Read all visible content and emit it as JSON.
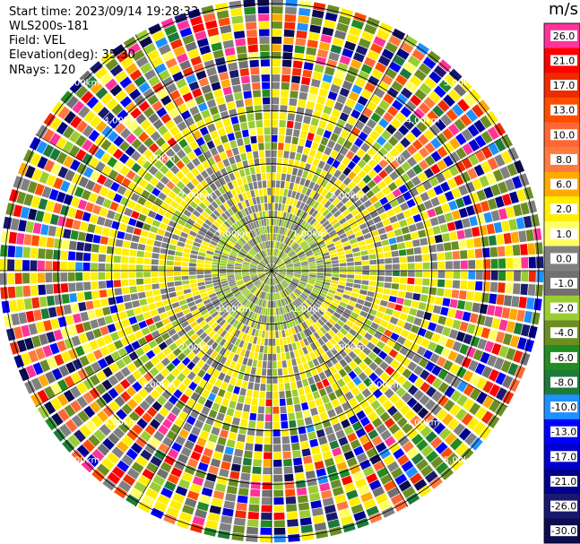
{
  "header": {
    "start_time": "Start time: 2023/09/14 19:28:33",
    "instrument": "WLS200s-181",
    "field": "Field: VEL",
    "elevation": "Elevation(deg): 35.30",
    "nrays": "NRays: 120"
  },
  "colorbar": {
    "unit": "m/s",
    "levels": [
      {
        "label": "26.0",
        "color": "#ff3399"
      },
      {
        "label": "21.0",
        "color": "#ff0000"
      },
      {
        "label": "17.0",
        "color": "#ee2a00"
      },
      {
        "label": "13.0",
        "color": "#ff4d00"
      },
      {
        "label": "10.0",
        "color": "#ff6633"
      },
      {
        "label": "8.0",
        "color": "#ff7a3d"
      },
      {
        "label": "6.0",
        "color": "#ffaa00"
      },
      {
        "label": "2.0",
        "color": "#ffee00"
      },
      {
        "label": "1.0",
        "color": "#ffff66"
      },
      {
        "label": "0.0",
        "color": "#808080"
      },
      {
        "label": "-1.0",
        "color": "#707070"
      },
      {
        "label": "-2.0",
        "color": "#9acd32"
      },
      {
        "label": "-4.0",
        "color": "#6b8e23"
      },
      {
        "label": "-6.0",
        "color": "#228b22"
      },
      {
        "label": "-8.0",
        "color": "#1e7a3a"
      },
      {
        "label": "-10.0",
        "color": "#1e90ff"
      },
      {
        "label": "-13.0",
        "color": "#0000ff"
      },
      {
        "label": "-17.0",
        "color": "#0000cc"
      },
      {
        "label": "-21.0",
        "color": "#00008b"
      },
      {
        "label": "-26.0",
        "color": "#191970"
      },
      {
        "label": "-30.0",
        "color": "#0b0b50"
      }
    ]
  },
  "chart_data": {
    "type": "heatmap",
    "projection": "polar PPI (plan position indicator)",
    "field": "VEL",
    "rays": 120,
    "range_rings_km": [
      1,
      2,
      3,
      4,
      5
    ],
    "ring_labels": [
      "1.00km",
      "2.00km",
      "3.00km",
      "4.00km",
      "5.00km"
    ],
    "max_range_km": 5,
    "velocity_pattern": "inner region dominated by near-zero velocities (gray/light green) with yellow 1–2 m/s patches; mid ranges mostly yellow/green; outer ranges noisy mix of all colors",
    "grid": true
  }
}
